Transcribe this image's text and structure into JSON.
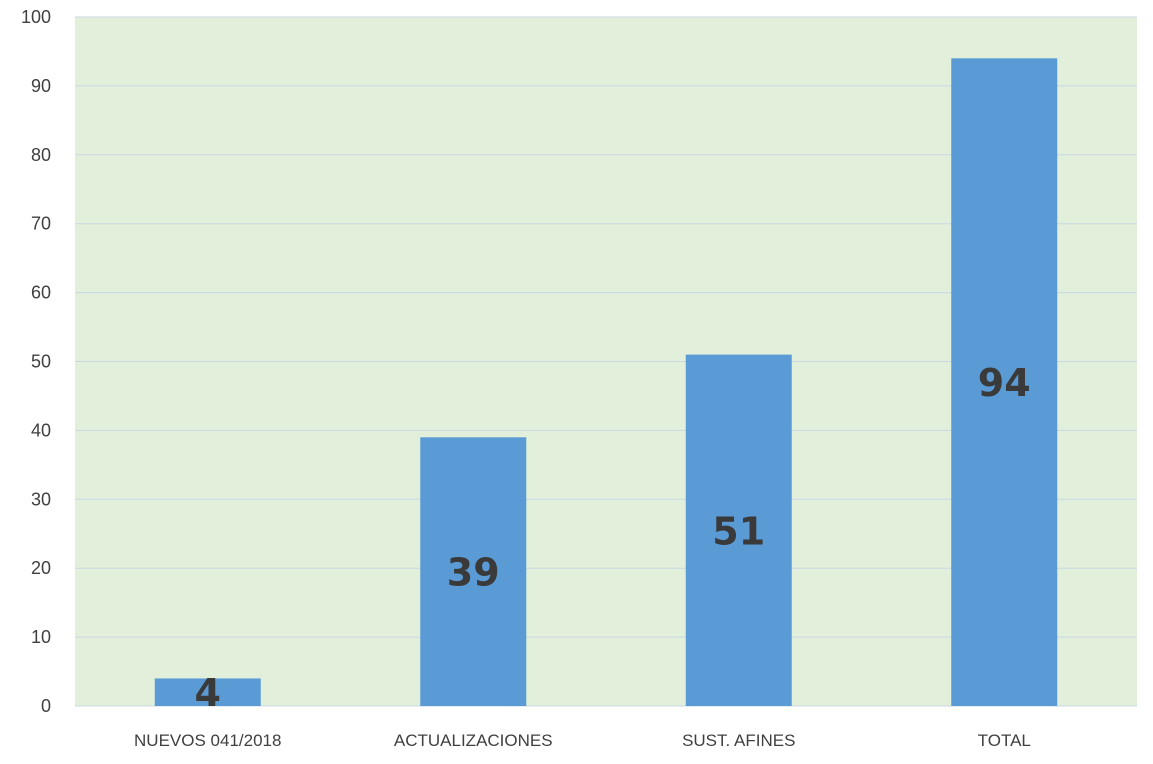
{
  "chart_data": {
    "type": "bar",
    "categories": [
      "NUEVOS 041/2018",
      "ACTUALIZACIONES",
      "SUST. AFINES",
      "TOTAL"
    ],
    "values": [
      4,
      39,
      51,
      94
    ],
    "data_labels": [
      "4",
      "39",
      "51",
      "94"
    ],
    "ylim": [
      0,
      100
    ],
    "yticks": [
      0,
      10,
      20,
      30,
      40,
      50,
      60,
      70,
      80,
      90,
      100
    ],
    "title": "",
    "xlabel": "",
    "ylabel": "",
    "grid": true,
    "legend": "none",
    "colors": {
      "bar": "#5b9bd5",
      "plot_background": "#e2efda",
      "gridline": "#c9d7e3",
      "axis_text": "#404040",
      "data_label": "#3a3a3a"
    }
  }
}
